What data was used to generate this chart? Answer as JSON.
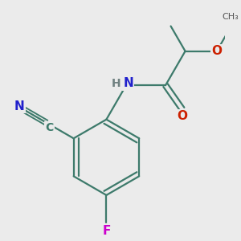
{
  "background_color": "#ebebeb",
  "bond_color": "#3d7a6b",
  "atom_colors": {
    "N": "#2020cc",
    "O": "#cc2000",
    "F": "#cc00cc",
    "C_label": "#3d7a6b",
    "H": "#708080"
  },
  "figsize": [
    3.0,
    3.0
  ],
  "dpi": 100,
  "bond_lw": 1.6,
  "font_size": 11
}
